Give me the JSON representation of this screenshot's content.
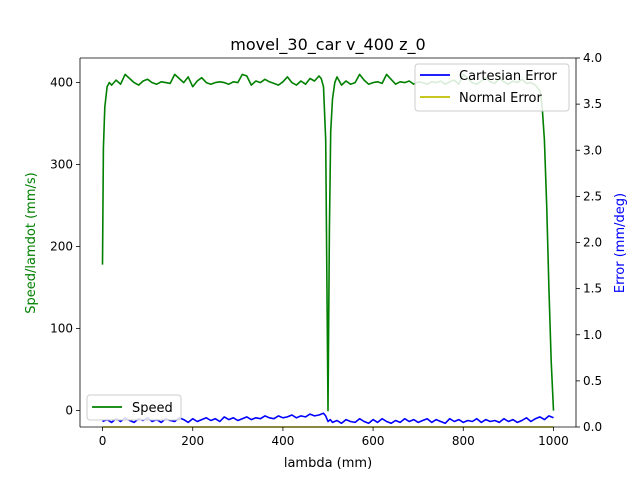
{
  "chart_data": {
    "type": "line",
    "title": "movel_30_car v_400 z_0",
    "xlabel": "lambda (mm)",
    "ylabel_left": "Speed/lamdot (mm/s)",
    "ylabel_right": "Error (mm/deg)",
    "xlim": [
      -50,
      1050
    ],
    "ylim_left": [
      -20,
      430
    ],
    "ylim_right": [
      0.0,
      4.0
    ],
    "x_ticks": [
      0,
      200,
      400,
      600,
      800,
      1000
    ],
    "y_ticks_left": [
      0,
      100,
      200,
      300,
      400
    ],
    "y_ticks_right": [
      "0.0",
      "0.5",
      "1.0",
      "1.5",
      "2.0",
      "2.5",
      "3.0",
      "3.5",
      "4.0"
    ],
    "grid": false,
    "legends": [
      {
        "placement": "top-right",
        "entries": [
          "Cartesian Error",
          "Normal Error"
        ]
      },
      {
        "placement": "bottom-left",
        "entries": [
          "Speed"
        ]
      }
    ],
    "colors": {
      "speed": "#008000",
      "cartesian": "#0000ff",
      "normal": "#bfbf00",
      "left_axis_label": "#008000",
      "right_axis_label": "#0000ff"
    },
    "series": [
      {
        "name": "Speed",
        "axis": "left",
        "x": [
          0,
          2,
          5,
          10,
          15,
          20,
          30,
          40,
          50,
          60,
          70,
          80,
          90,
          100,
          110,
          120,
          130,
          140,
          150,
          160,
          170,
          180,
          190,
          200,
          210,
          220,
          230,
          240,
          250,
          260,
          270,
          280,
          290,
          300,
          310,
          320,
          330,
          340,
          350,
          360,
          370,
          380,
          390,
          400,
          410,
          420,
          430,
          440,
          450,
          460,
          470,
          480,
          485,
          490,
          495,
          500,
          503,
          506,
          510,
          515,
          520,
          530,
          540,
          550,
          560,
          570,
          580,
          590,
          600,
          610,
          620,
          630,
          640,
          650,
          660,
          670,
          680,
          690,
          700,
          710,
          720,
          730,
          740,
          750,
          760,
          770,
          780,
          790,
          800,
          810,
          820,
          830,
          840,
          850,
          860,
          870,
          880,
          890,
          900,
          910,
          920,
          930,
          940,
          950,
          960,
          970,
          975,
          980,
          985,
          990,
          995,
          1000
        ],
        "y": [
          178,
          320,
          370,
          395,
          400,
          397,
          403,
          398,
          410,
          405,
          400,
          397,
          402,
          404,
          400,
          398,
          401,
          400,
          399,
          410,
          405,
          400,
          407,
          395,
          402,
          406,
          400,
          398,
          400,
          401,
          400,
          398,
          401,
          400,
          410,
          408,
          397,
          402,
          400,
          404,
          401,
          399,
          397,
          401,
          407,
          400,
          397,
          402,
          398,
          405,
          402,
          408,
          405,
          395,
          330,
          0,
          220,
          340,
          380,
          400,
          407,
          397,
          402,
          398,
          400,
          410,
          403,
          398,
          400,
          401,
          399,
          410,
          404,
          398,
          401,
          400,
          402,
          398,
          401,
          400,
          398,
          401,
          400,
          402,
          398,
          401,
          403,
          398,
          410,
          405,
          400,
          398,
          402,
          406,
          401,
          399,
          405,
          401,
          398,
          402,
          400,
          404,
          399,
          400,
          397,
          390,
          370,
          330,
          250,
          150,
          60,
          0
        ]
      },
      {
        "name": "Cartesian Error",
        "axis": "right",
        "x": [
          0,
          10,
          20,
          30,
          40,
          50,
          60,
          70,
          80,
          90,
          100,
          110,
          120,
          130,
          140,
          150,
          160,
          170,
          180,
          190,
          200,
          210,
          220,
          230,
          240,
          250,
          260,
          270,
          280,
          290,
          300,
          310,
          320,
          330,
          340,
          350,
          360,
          370,
          380,
          390,
          400,
          410,
          420,
          430,
          440,
          450,
          460,
          470,
          480,
          490,
          495,
          500,
          505,
          510,
          520,
          530,
          540,
          550,
          560,
          570,
          580,
          590,
          600,
          610,
          620,
          630,
          640,
          650,
          660,
          670,
          680,
          690,
          700,
          710,
          720,
          730,
          740,
          750,
          760,
          770,
          780,
          790,
          800,
          810,
          820,
          830,
          840,
          850,
          860,
          870,
          880,
          890,
          900,
          910,
          920,
          930,
          940,
          950,
          960,
          970,
          980,
          990,
          1000
        ],
        "y": [
          0.06,
          0.08,
          0.05,
          0.09,
          0.06,
          0.1,
          0.07,
          0.05,
          0.09,
          0.07,
          0.1,
          0.06,
          0.08,
          0.05,
          0.09,
          0.07,
          0.06,
          0.1,
          0.08,
          0.05,
          0.09,
          0.06,
          0.08,
          0.1,
          0.07,
          0.09,
          0.06,
          0.11,
          0.08,
          0.1,
          0.07,
          0.09,
          0.11,
          0.08,
          0.1,
          0.09,
          0.12,
          0.1,
          0.09,
          0.12,
          0.1,
          0.11,
          0.13,
          0.1,
          0.12,
          0.11,
          0.14,
          0.12,
          0.13,
          0.15,
          0.12,
          0.06,
          0.08,
          0.05,
          0.07,
          0.04,
          0.08,
          0.06,
          0.05,
          0.09,
          0.06,
          0.04,
          0.08,
          0.05,
          0.09,
          0.06,
          0.04,
          0.07,
          0.05,
          0.09,
          0.06,
          0.08,
          0.05,
          0.07,
          0.09,
          0.05,
          0.08,
          0.06,
          0.04,
          0.09,
          0.06,
          0.08,
          0.05,
          0.07,
          0.06,
          0.09,
          0.05,
          0.08,
          0.06,
          0.07,
          0.05,
          0.09,
          0.06,
          0.08,
          0.05,
          0.07,
          0.1,
          0.06,
          0.09,
          0.11,
          0.08,
          0.12,
          0.1
        ]
      },
      {
        "name": "Normal Error",
        "axis": "right",
        "x": [
          0,
          500,
          1000
        ],
        "y": [
          0.0,
          0.0,
          0.0
        ]
      }
    ]
  }
}
